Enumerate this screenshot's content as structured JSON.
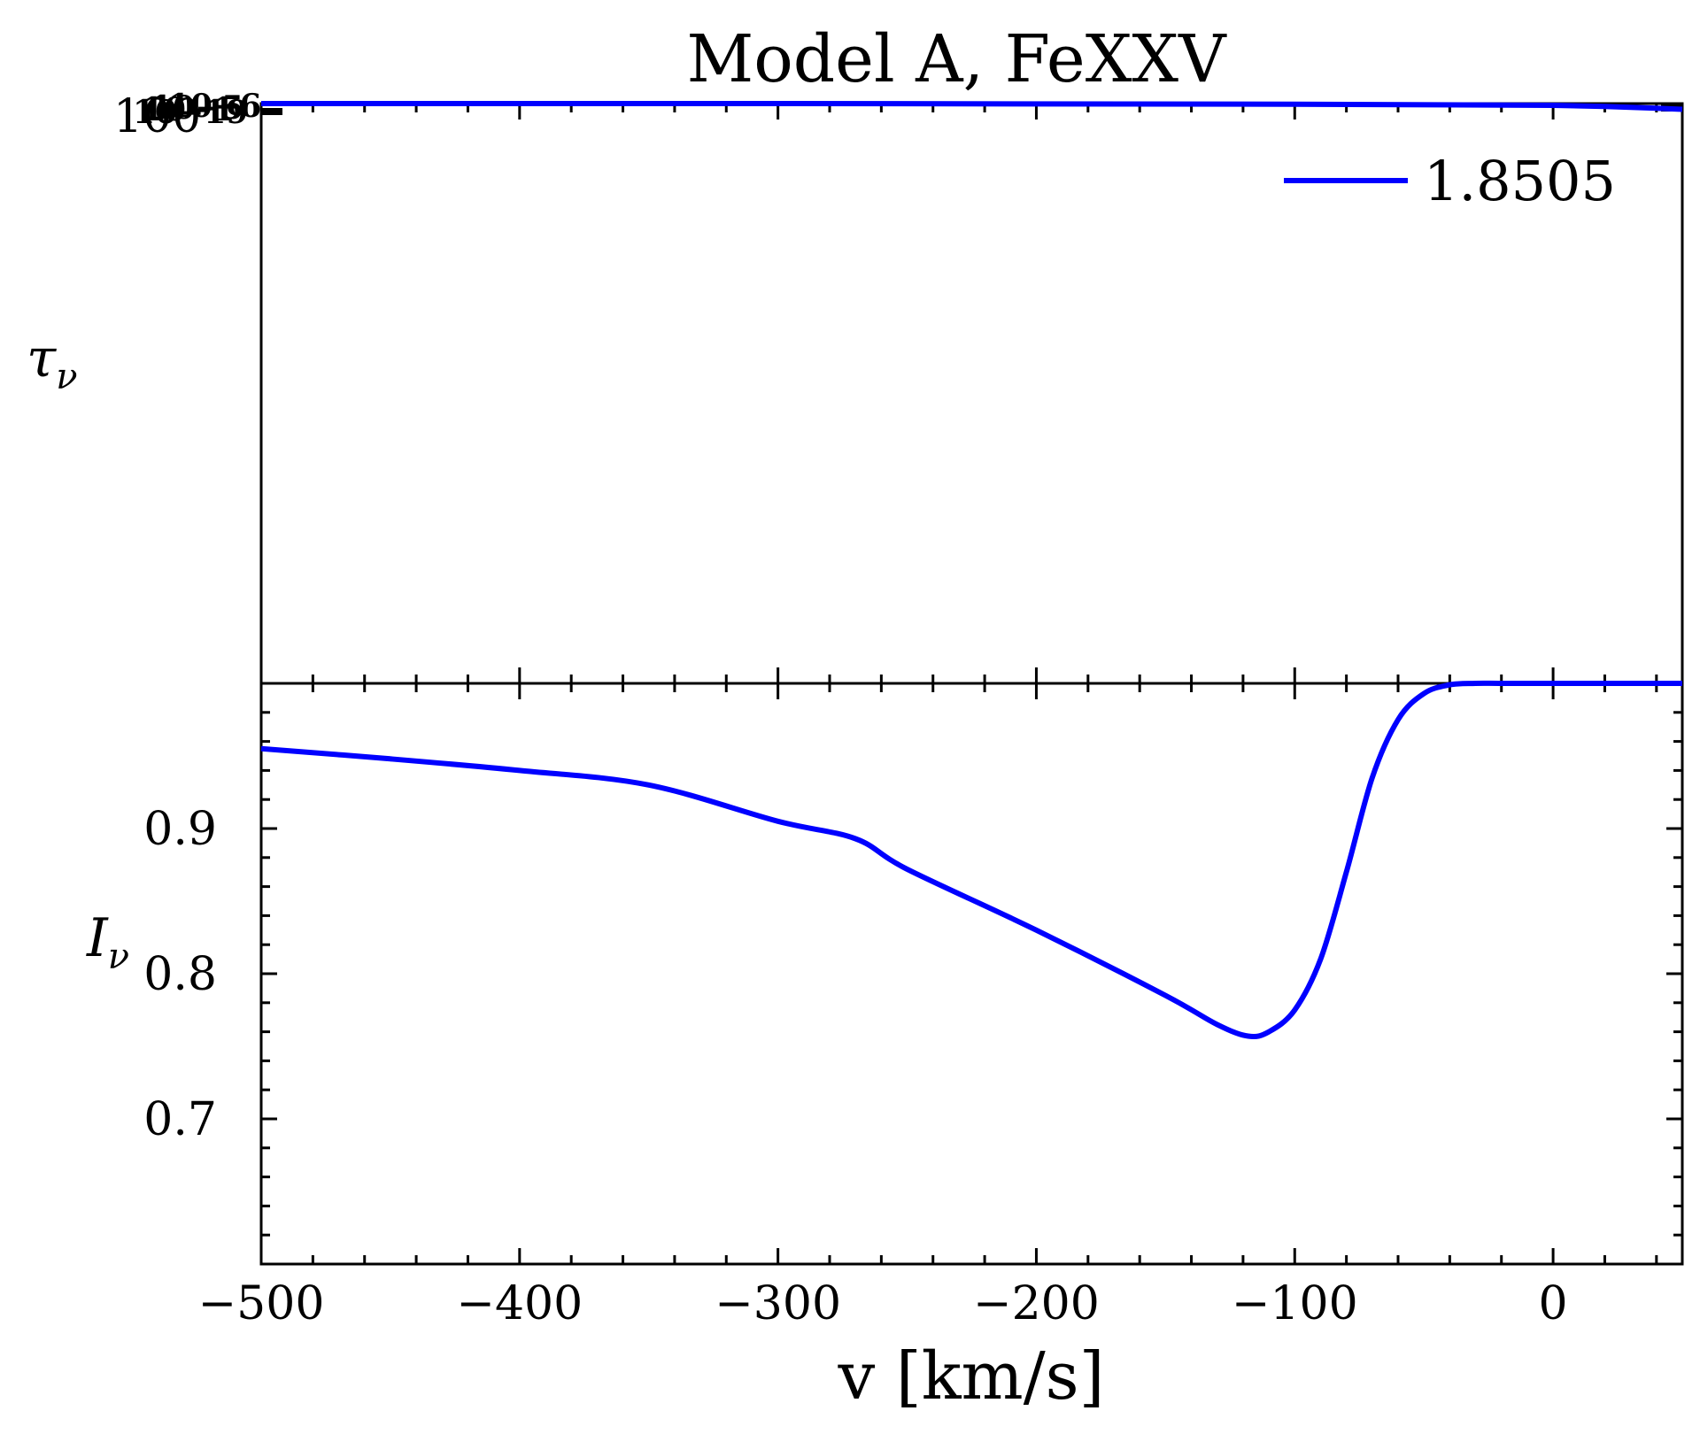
{
  "chart_data": [
    {
      "type": "line",
      "panel": "top",
      "title": "Model A, FeXXV",
      "ylabel": "τ",
      "ylabel_sub": "ν",
      "yscale": "log",
      "ytick_labels": [
        "100",
        "10−19",
        "10−1",
        "10−5",
        "10−6"
      ],
      "xlim": [
        -500,
        50
      ],
      "legend": {
        "position": "top-right",
        "entries": [
          "1.8505"
        ]
      },
      "series": [
        {
          "name": "1.8505",
          "color": "#0000ff",
          "x": [
            -500,
            -300,
            -100,
            0,
            20,
            40,
            50
          ],
          "y_axes_fraction": [
            1.0,
            1.0,
            0.999,
            0.997,
            0.995,
            0.992,
            0.99
          ]
        }
      ]
    },
    {
      "type": "line",
      "panel": "bottom",
      "xlabel": "v [km/s]",
      "ylabel": "I",
      "ylabel_sub": "ν",
      "xlim": [
        -500,
        50
      ],
      "ylim": [
        0.6,
        1.0
      ],
      "xticks": [
        -500,
        -400,
        -300,
        -200,
        -100,
        0
      ],
      "xtick_labels": [
        "−500",
        "−400",
        "−300",
        "−200",
        "−100",
        "0"
      ],
      "yticks": [
        0.7,
        0.8,
        0.9
      ],
      "ytick_labels": [
        "0.7",
        "0.8",
        "0.9"
      ],
      "series": [
        {
          "name": "1.8505",
          "color": "#0000ff",
          "x": [
            -500,
            -450,
            -400,
            -350,
            -300,
            -270,
            -250,
            -200,
            -150,
            -130,
            -118,
            -110,
            -100,
            -90,
            -80,
            -70,
            -60,
            -50,
            -40,
            -30,
            -20,
            0,
            50
          ],
          "y": [
            0.955,
            0.948,
            0.94,
            0.93,
            0.905,
            0.893,
            0.872,
            0.83,
            0.785,
            0.765,
            0.757,
            0.76,
            0.775,
            0.81,
            0.87,
            0.935,
            0.975,
            0.993,
            0.999,
            1.0,
            1.0,
            1.0,
            1.0
          ]
        }
      ]
    }
  ]
}
